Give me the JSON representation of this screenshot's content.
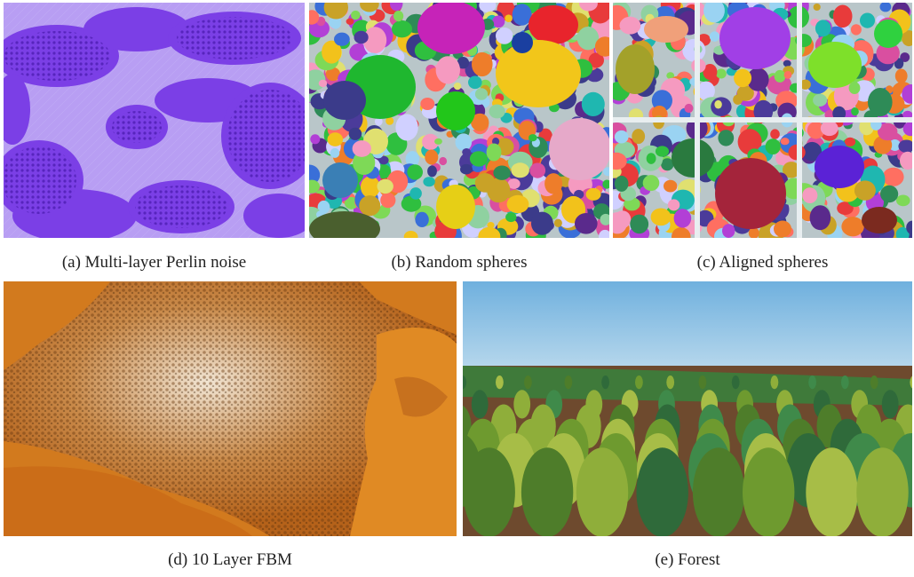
{
  "figure": {
    "panels": [
      {
        "id": "a",
        "caption": "(a) Multi-layer Perlin noise",
        "base_color": "#8a4cf0"
      },
      {
        "id": "b",
        "caption": "(b) Random spheres"
      },
      {
        "id": "c",
        "caption": "(c) Aligned spheres"
      },
      {
        "id": "d",
        "caption": "(d) 10 Layer FBM",
        "base_color": "#d8862a"
      },
      {
        "id": "e",
        "caption": "(e) Forest",
        "sky_color": "#8fc3e4",
        "ground_color": "#6e4a2e"
      }
    ]
  }
}
